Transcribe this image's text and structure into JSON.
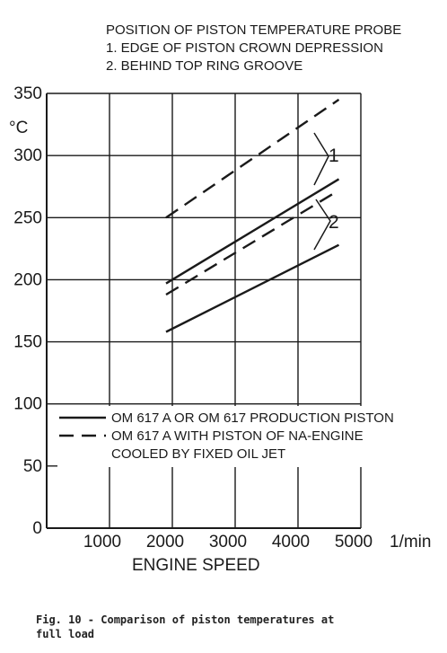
{
  "chart_data": {
    "type": "line",
    "header": [
      "POSITION OF PISTON TEMPERATURE PROBE",
      "1. EDGE OF PISTON CROWN DEPRESSION",
      "2. BEHIND TOP RING GROOVE"
    ],
    "ylabel": "°C",
    "xlabel": "ENGINE SPEED",
    "x_unit": "1/min",
    "xlim": [
      0,
      5000
    ],
    "ylim": [
      0,
      350
    ],
    "x_ticks": [
      1000,
      2000,
      3000,
      4000,
      5000
    ],
    "y_ticks": [
      0,
      50,
      100,
      150,
      200,
      250,
      300,
      350
    ],
    "grid": true,
    "legend": {
      "position": "bottom-left",
      "entries": [
        {
          "style": "solid",
          "lines": [
            "OM 617 A OR OM 617 PRODUCTION PISTON"
          ]
        },
        {
          "style": "dashed",
          "lines": [
            "OM 617 A WITH PISTON OF NA-ENGINE",
            "COOLED BY FIXED OIL JET"
          ]
        }
      ]
    },
    "annotations": [
      "1",
      "2"
    ],
    "series": [
      {
        "style": "dashed",
        "group": "1",
        "x": [
          1900,
          4650
        ],
        "y": [
          250,
          345
        ]
      },
      {
        "style": "solid",
        "group": "1",
        "x": [
          1900,
          4650
        ],
        "y": [
          197,
          281
        ]
      },
      {
        "style": "dashed",
        "group": "2",
        "x": [
          1900,
          4650
        ],
        "y": [
          188,
          272
        ]
      },
      {
        "style": "solid",
        "group": "2",
        "x": [
          1900,
          4650
        ],
        "y": [
          158,
          228
        ]
      }
    ]
  },
  "caption": [
    "Fig. 10 - Comparison of piston temperatures at",
    "full load"
  ]
}
